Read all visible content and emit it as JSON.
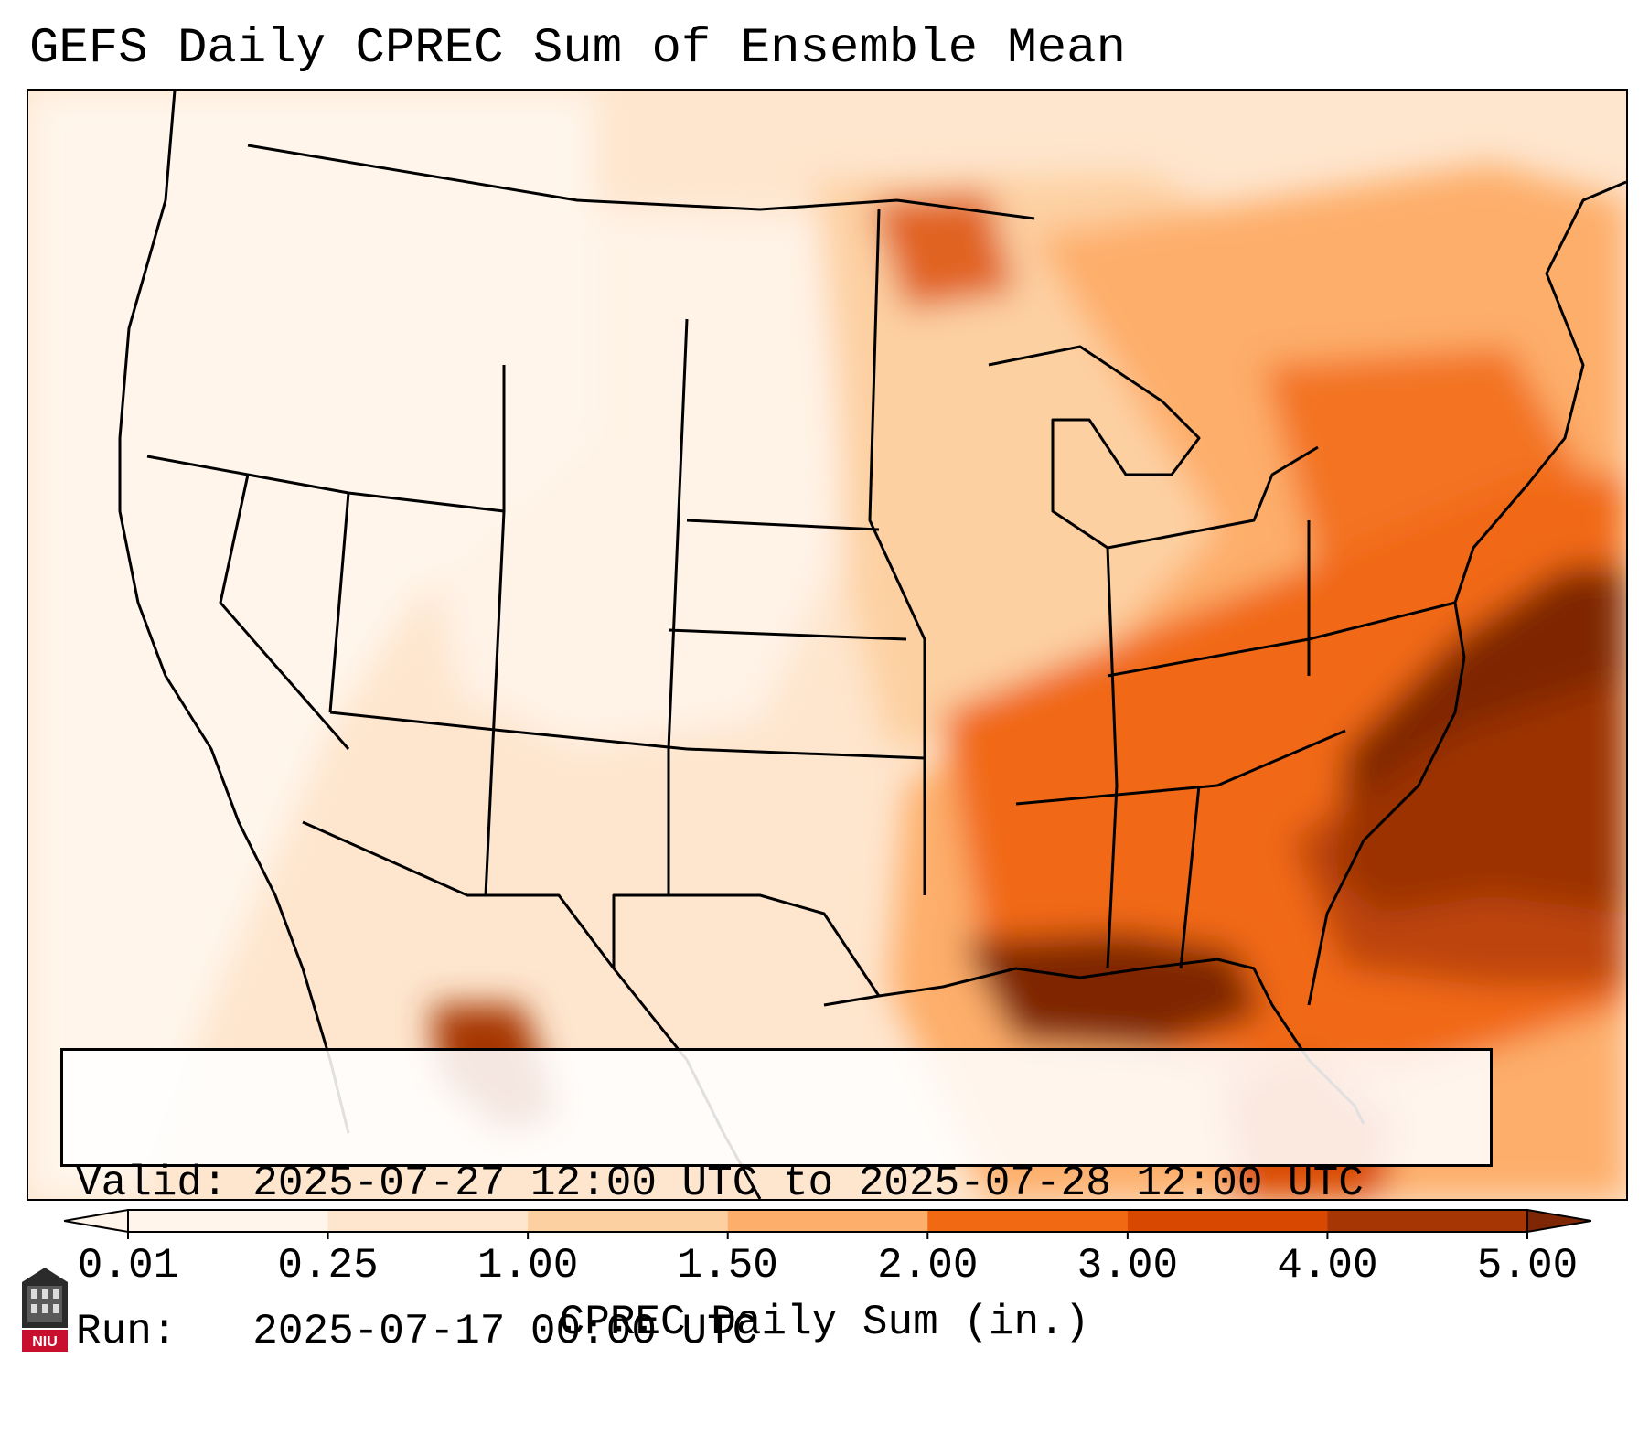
{
  "title": "GEFS Daily CPREC Sum of Ensemble Mean",
  "info": {
    "valid_label": "Valid:",
    "valid_value": "2025-07-27 12:00 UTC to 2025-07-28 12:00 UTC",
    "run_label": "Run:",
    "run_value": "2025-07-17 00:00 UTC"
  },
  "colorbar": {
    "label": "CPREC Daily Sum (in.)",
    "ticks": [
      "0.01",
      "0.25",
      "1.00",
      "1.50",
      "2.00",
      "3.00",
      "4.00",
      "5.00"
    ],
    "colors": [
      "#fff5eb",
      "#fee6ce",
      "#fdd0a2",
      "#fdae6b",
      "#f16913",
      "#d94801",
      "#a63603",
      "#7f2704"
    ],
    "extend": "both"
  },
  "map": {
    "region": "Contiguous United States",
    "projection": "Lambert Conformal",
    "heaviest_precip_areas": [
      "Gulf Coast",
      "Southeast coast",
      "Western Atlantic offshore",
      "Sierra Madre Occidental"
    ]
  },
  "logo": {
    "text": "NIU",
    "icon": "niu-logo-icon"
  }
}
